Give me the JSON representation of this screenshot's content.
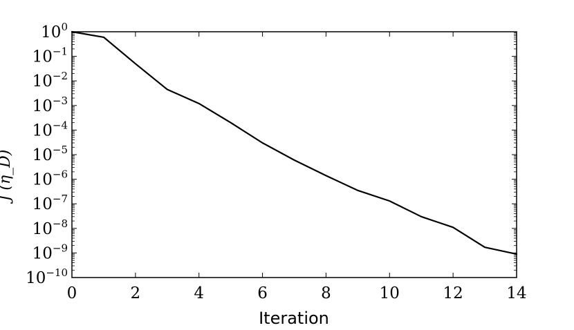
{
  "chart_data": {
    "type": "line",
    "xlabel": "Iteration",
    "ylabel": "J (η_D)",
    "xlim": [
      0,
      14
    ],
    "ylim": [
      1e-10,
      1
    ],
    "yscale": "log",
    "grid": false,
    "xticks": [
      0,
      2,
      4,
      6,
      8,
      10,
      12,
      14
    ],
    "yticks": [
      {
        "base": "10",
        "exp": "0",
        "value": 1
      },
      {
        "base": "10",
        "exp": "−1",
        "value": 0.1
      },
      {
        "base": "10",
        "exp": "−2",
        "value": 0.01
      },
      {
        "base": "10",
        "exp": "−3",
        "value": 0.001
      },
      {
        "base": "10",
        "exp": "−4",
        "value": 0.0001
      },
      {
        "base": "10",
        "exp": "−5",
        "value": 1e-05
      },
      {
        "base": "10",
        "exp": "−6",
        "value": 1e-06
      },
      {
        "base": "10",
        "exp": "−7",
        "value": 1e-07
      },
      {
        "base": "10",
        "exp": "−8",
        "value": 1e-08
      },
      {
        "base": "10",
        "exp": "−9",
        "value": 1e-09
      },
      {
        "base": "10",
        "exp": "−10",
        "value": 1e-10
      }
    ],
    "series": [
      {
        "color": "#000000",
        "x": [
          0,
          1,
          2,
          3,
          4,
          5,
          6,
          7,
          8,
          9,
          10,
          11,
          12,
          13,
          14
        ],
        "y": [
          1.0,
          0.6,
          0.05,
          0.0045,
          0.0012,
          0.0002,
          3e-05,
          6e-06,
          1.4e-06,
          3.5e-07,
          1.3e-07,
          3e-08,
          1.1e-08,
          1.7e-09,
          9e-10
        ]
      }
    ]
  }
}
